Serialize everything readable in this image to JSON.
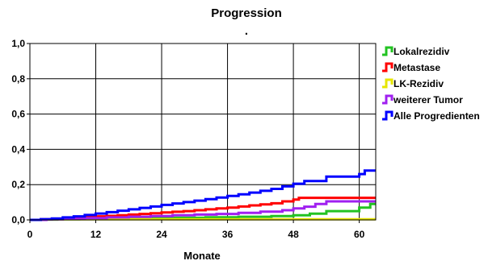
{
  "chart_data": {
    "type": "line",
    "step": true,
    "title": "Progression",
    "subtitle": ".",
    "xlabel": "Monate",
    "ylabel": "",
    "xlim": [
      0,
      63
    ],
    "ylim": [
      0,
      1
    ],
    "x_ticks": [
      0,
      12,
      24,
      36,
      48,
      60
    ],
    "x_tick_labels": [
      "0",
      "12",
      "24",
      "36",
      "48",
      "60"
    ],
    "y_ticks": [
      0,
      0.2,
      0.4,
      0.6,
      0.8,
      1.0
    ],
    "y_tick_labels": [
      "0,0",
      "0,2",
      "0,4",
      "0,6",
      "0,8",
      "1,0"
    ],
    "grid": true,
    "legend_position": "top-right-outside",
    "series": [
      {
        "name": "Lokalrezidiv",
        "color": "#22c322",
        "x": [
          0,
          2,
          5,
          9,
          14,
          20,
          26,
          32,
          38,
          44,
          48,
          51,
          54,
          60,
          62,
          63
        ],
        "y": [
          0.0,
          0.002,
          0.004,
          0.006,
          0.008,
          0.01,
          0.012,
          0.015,
          0.018,
          0.022,
          0.026,
          0.035,
          0.05,
          0.07,
          0.09,
          0.09
        ]
      },
      {
        "name": "Metastase",
        "color": "#ff0000",
        "x": [
          0,
          2,
          4,
          6,
          8,
          10,
          12,
          14,
          16,
          18,
          20,
          22,
          24,
          26,
          28,
          30,
          32,
          34,
          36,
          38,
          40,
          42,
          44,
          46,
          48,
          49,
          63
        ],
        "y": [
          0.0,
          0.003,
          0.006,
          0.01,
          0.014,
          0.017,
          0.02,
          0.023,
          0.026,
          0.03,
          0.034,
          0.038,
          0.042,
          0.046,
          0.05,
          0.055,
          0.06,
          0.065,
          0.07,
          0.076,
          0.082,
          0.088,
          0.094,
          0.105,
          0.115,
          0.125,
          0.125
        ]
      },
      {
        "name": "LK-Rezidiv",
        "color": "#e6e600",
        "x": [
          0,
          3,
          63
        ],
        "y": [
          0.0,
          0.003,
          0.003
        ]
      },
      {
        "name": "weiterer Tumor",
        "color": "#a020f0",
        "x": [
          0,
          3,
          6,
          10,
          14,
          18,
          22,
          26,
          30,
          34,
          38,
          42,
          46,
          48,
          50,
          52,
          54,
          63
        ],
        "y": [
          0.0,
          0.003,
          0.006,
          0.01,
          0.014,
          0.018,
          0.022,
          0.026,
          0.03,
          0.034,
          0.04,
          0.047,
          0.055,
          0.065,
          0.075,
          0.09,
          0.105,
          0.105
        ]
      },
      {
        "name": "Alle Progredienten",
        "color": "#0000ff",
        "x": [
          0,
          2,
          4,
          6,
          8,
          10,
          12,
          14,
          16,
          18,
          20,
          22,
          24,
          26,
          28,
          30,
          32,
          34,
          36,
          38,
          40,
          42,
          44,
          46,
          48,
          50,
          52,
          54,
          56,
          58,
          60,
          61,
          63
        ],
        "y": [
          0.0,
          0.004,
          0.008,
          0.014,
          0.02,
          0.028,
          0.036,
          0.044,
          0.052,
          0.06,
          0.068,
          0.076,
          0.085,
          0.093,
          0.101,
          0.109,
          0.118,
          0.127,
          0.136,
          0.145,
          0.155,
          0.165,
          0.176,
          0.19,
          0.205,
          0.22,
          0.22,
          0.245,
          0.245,
          0.245,
          0.26,
          0.28,
          0.28
        ]
      }
    ]
  }
}
